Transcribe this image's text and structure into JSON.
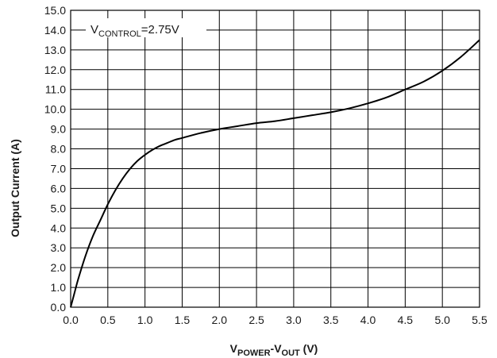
{
  "chart_data": {
    "type": "line",
    "xlabel": {
      "main1": "V",
      "sub1": "POWER",
      "dash": "-V",
      "sub2": "OUT",
      "unit": " (V)"
    },
    "ylabel": "Output Current (A)",
    "annotation": {
      "main": "V",
      "sub": "CONTROL",
      "value": "=2.75V"
    },
    "xlim": [
      0.0,
      5.5
    ],
    "ylim": [
      0.0,
      15.0
    ],
    "x_ticks": [
      "0.0",
      "0.5",
      "1.0",
      "1.5",
      "2.0",
      "2.5",
      "3.0",
      "3.5",
      "4.0",
      "4.5",
      "5.0",
      "5.5"
    ],
    "y_ticks": [
      "0.0",
      "1.0",
      "2.0",
      "3.0",
      "4.0",
      "5.0",
      "6.0",
      "7.0",
      "8.0",
      "9.0",
      "10.0",
      "11.0",
      "12.0",
      "13.0",
      "14.0",
      "15.0"
    ],
    "grid": true,
    "series": [
      {
        "color": "#000000",
        "x": [
          0.0,
          0.05,
          0.1,
          0.2,
          0.3,
          0.4,
          0.5,
          0.6,
          0.7,
          0.8,
          0.9,
          1.0,
          1.1,
          1.2,
          1.3,
          1.4,
          1.5,
          1.75,
          2.0,
          2.25,
          2.5,
          2.75,
          3.0,
          3.25,
          3.5,
          3.75,
          4.0,
          4.25,
          4.5,
          4.75,
          5.0,
          5.25,
          5.5
        ],
        "y": [
          0.0,
          0.7,
          1.4,
          2.6,
          3.6,
          4.4,
          5.2,
          5.9,
          6.5,
          7.0,
          7.4,
          7.7,
          7.95,
          8.15,
          8.3,
          8.45,
          8.55,
          8.8,
          9.0,
          9.15,
          9.3,
          9.4,
          9.55,
          9.7,
          9.85,
          10.05,
          10.3,
          10.6,
          11.0,
          11.4,
          11.95,
          12.65,
          13.5
        ]
      }
    ]
  }
}
